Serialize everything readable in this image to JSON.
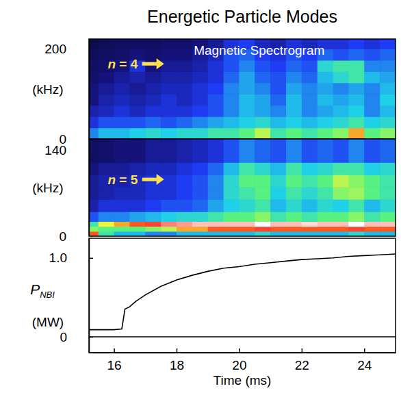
{
  "chart_data": [
    {
      "type": "heatmap",
      "title": "Energetic Particle Modes",
      "ylabel": "(kHz)",
      "xlim": [
        15.2,
        25.0
      ],
      "ylim": [
        0,
        222
      ],
      "yticks": [
        0,
        200
      ],
      "tick_labels": "y",
      "zlim": [
        0,
        1
      ],
      "x_edges": [
        15.0,
        15.5,
        16.0,
        16.5,
        17.0,
        17.5,
        18.0,
        18.5,
        19.0,
        19.5,
        20.0,
        20.5,
        21.0,
        21.5,
        22.0,
        22.5,
        23.0,
        23.5,
        24.0,
        24.5,
        25.0
      ],
      "y_edges": [
        0,
        25,
        50,
        75,
        100,
        125,
        150,
        175,
        200,
        225
      ],
      "z": [
        [
          0.35,
          0.4,
          0.4,
          0.42,
          0.45,
          0.42,
          0.45,
          0.45,
          0.5,
          0.5,
          0.55,
          0.65,
          0.5,
          0.55,
          0.5,
          0.55,
          0.6,
          0.75,
          0.55,
          0.6
        ],
        [
          0.25,
          0.3,
          0.3,
          0.3,
          0.32,
          0.3,
          0.32,
          0.35,
          0.38,
          0.4,
          0.42,
          0.45,
          0.4,
          0.42,
          0.4,
          0.42,
          0.45,
          0.5,
          0.42,
          0.45
        ],
        [
          0.2,
          0.22,
          0.25,
          0.22,
          0.25,
          0.25,
          0.25,
          0.28,
          0.3,
          0.35,
          0.4,
          0.38,
          0.35,
          0.4,
          0.35,
          0.38,
          0.4,
          0.42,
          0.35,
          0.4
        ],
        [
          0.15,
          0.2,
          0.22,
          0.2,
          0.22,
          0.25,
          0.22,
          0.25,
          0.3,
          0.35,
          0.4,
          0.38,
          0.32,
          0.4,
          0.35,
          0.4,
          0.38,
          0.4,
          0.35,
          0.42
        ],
        [
          0.15,
          0.18,
          0.2,
          0.18,
          0.2,
          0.22,
          0.22,
          0.25,
          0.28,
          0.35,
          0.38,
          0.35,
          0.3,
          0.38,
          0.35,
          0.38,
          0.35,
          0.38,
          0.35,
          0.4
        ],
        [
          0.12,
          0.15,
          0.18,
          0.2,
          0.18,
          0.2,
          0.2,
          0.22,
          0.25,
          0.32,
          0.38,
          0.32,
          0.3,
          0.35,
          0.32,
          0.4,
          0.45,
          0.5,
          0.4,
          0.38
        ],
        [
          0.1,
          0.12,
          0.15,
          0.25,
          0.15,
          0.18,
          0.18,
          0.2,
          0.25,
          0.3,
          0.35,
          0.3,
          0.28,
          0.32,
          0.3,
          0.45,
          0.5,
          0.5,
          0.35,
          0.35
        ],
        [
          0.08,
          0.1,
          0.12,
          0.15,
          0.12,
          0.15,
          0.15,
          0.18,
          0.22,
          0.3,
          0.32,
          0.28,
          0.25,
          0.3,
          0.28,
          0.32,
          0.3,
          0.32,
          0.3,
          0.32
        ],
        [
          0.05,
          0.08,
          0.1,
          0.1,
          0.1,
          0.12,
          0.12,
          0.15,
          0.18,
          0.25,
          0.28,
          0.22,
          0.2,
          0.25,
          0.22,
          0.25,
          0.25,
          0.28,
          0.25,
          0.28
        ]
      ],
      "annotations": [
        {
          "text": "Magnetic Spectrogram",
          "x": 18.55,
          "y": 187,
          "color": "#ffffff"
        },
        {
          "text": "n = 4",
          "x": 15.8,
          "y": 157,
          "color": "#ffe14d",
          "marker": "arrow"
        }
      ]
    },
    {
      "type": "heatmap",
      "ylabel": "(kHz)",
      "xlim": [
        15.2,
        25.0
      ],
      "ylim": [
        0,
        158
      ],
      "yticks": [
        0,
        140
      ],
      "tick_labels": "y",
      "zlim": [
        0,
        1
      ],
      "x_edges": [
        15.0,
        15.5,
        16.0,
        16.5,
        17.0,
        17.5,
        18.0,
        18.5,
        19.0,
        19.5,
        20.0,
        20.5,
        21.0,
        21.5,
        22.0,
        22.5,
        23.0,
        23.5,
        24.0,
        24.5,
        25.0
      ],
      "y_edges": [
        0,
        8,
        16,
        24,
        40,
        60,
        80,
        100,
        120,
        160
      ],
      "z": [
        [
          0.8,
          0.5,
          0.4,
          0.4,
          0.35,
          0.35,
          0.4,
          0.4,
          0.4,
          0.4,
          0.4,
          0.45,
          0.4,
          0.4,
          0.4,
          0.4,
          0.4,
          0.45,
          0.4,
          0.4
        ],
        [
          0.6,
          0.55,
          0.55,
          0.55,
          0.6,
          0.65,
          0.75,
          0.75,
          0.8,
          0.8,
          0.8,
          0.85,
          0.8,
          0.8,
          0.8,
          0.8,
          0.8,
          0.85,
          0.8,
          0.8
        ],
        [
          0.5,
          0.7,
          0.75,
          0.8,
          0.85,
          0.9,
          0.92,
          0.95,
          0.95,
          0.95,
          0.95,
          1.0,
          0.95,
          0.95,
          0.97,
          0.95,
          0.95,
          1.0,
          0.95,
          0.95
        ],
        [
          0.3,
          0.35,
          0.35,
          0.38,
          0.4,
          0.42,
          0.45,
          0.45,
          0.5,
          0.55,
          0.55,
          0.6,
          0.5,
          0.55,
          0.5,
          0.55,
          0.55,
          0.6,
          0.5,
          0.55
        ],
        [
          0.2,
          0.25,
          0.25,
          0.25,
          0.28,
          0.3,
          0.3,
          0.32,
          0.38,
          0.42,
          0.45,
          0.5,
          0.4,
          0.45,
          0.4,
          0.45,
          0.42,
          0.5,
          0.4,
          0.45
        ],
        [
          0.18,
          0.2,
          0.22,
          0.22,
          0.25,
          0.25,
          0.28,
          0.3,
          0.35,
          0.45,
          0.5,
          0.55,
          0.42,
          0.5,
          0.45,
          0.5,
          0.6,
          0.62,
          0.55,
          0.5
        ],
        [
          0.18,
          0.2,
          0.2,
          0.22,
          0.25,
          0.25,
          0.28,
          0.3,
          0.35,
          0.45,
          0.55,
          0.55,
          0.45,
          0.55,
          0.5,
          0.55,
          0.65,
          0.6,
          0.55,
          0.5
        ],
        [
          0.15,
          0.18,
          0.18,
          0.2,
          0.22,
          0.22,
          0.25,
          0.28,
          0.32,
          0.4,
          0.5,
          0.45,
          0.4,
          0.5,
          0.42,
          0.45,
          0.5,
          0.5,
          0.42,
          0.45
        ],
        [
          0.1,
          0.12,
          0.15,
          0.15,
          0.18,
          0.18,
          0.2,
          0.22,
          0.25,
          0.3,
          0.35,
          0.32,
          0.3,
          0.35,
          0.3,
          0.32,
          0.3,
          0.35,
          0.3,
          0.32
        ]
      ],
      "annotations": [
        {
          "text": "n = 5",
          "x": 15.8,
          "y": 85,
          "color": "#ffe14d",
          "marker": "arrow"
        }
      ]
    },
    {
      "type": "line",
      "xlabel": "Time (ms)",
      "ylabel": {
        "text": "P",
        "subscript": "NBI"
      },
      "yunit": "(MW)",
      "xlim": [
        15.2,
        25.0
      ],
      "xticks": [
        16,
        18,
        20,
        22,
        24
      ],
      "ylim": [
        -0.2,
        1.25
      ],
      "yticks": [
        0,
        {
          "value": 1.0,
          "label": "1.0"
        }
      ],
      "reference_line": 0,
      "color": "#000000",
      "x": [
        15.2,
        15.6,
        16.0,
        16.25,
        16.35,
        16.5,
        16.7,
        17.0,
        17.5,
        18.0,
        18.5,
        19.0,
        19.5,
        20.0,
        20.5,
        21.0,
        21.5,
        22.0,
        22.5,
        23.0,
        23.5,
        24.0,
        24.5,
        25.0
      ],
      "values": [
        0.09,
        0.09,
        0.09,
        0.1,
        0.35,
        0.38,
        0.45,
        0.53,
        0.64,
        0.72,
        0.78,
        0.83,
        0.87,
        0.89,
        0.92,
        0.94,
        0.96,
        0.98,
        0.99,
        1.0,
        1.02,
        1.03,
        1.04,
        1.05
      ]
    }
  ]
}
